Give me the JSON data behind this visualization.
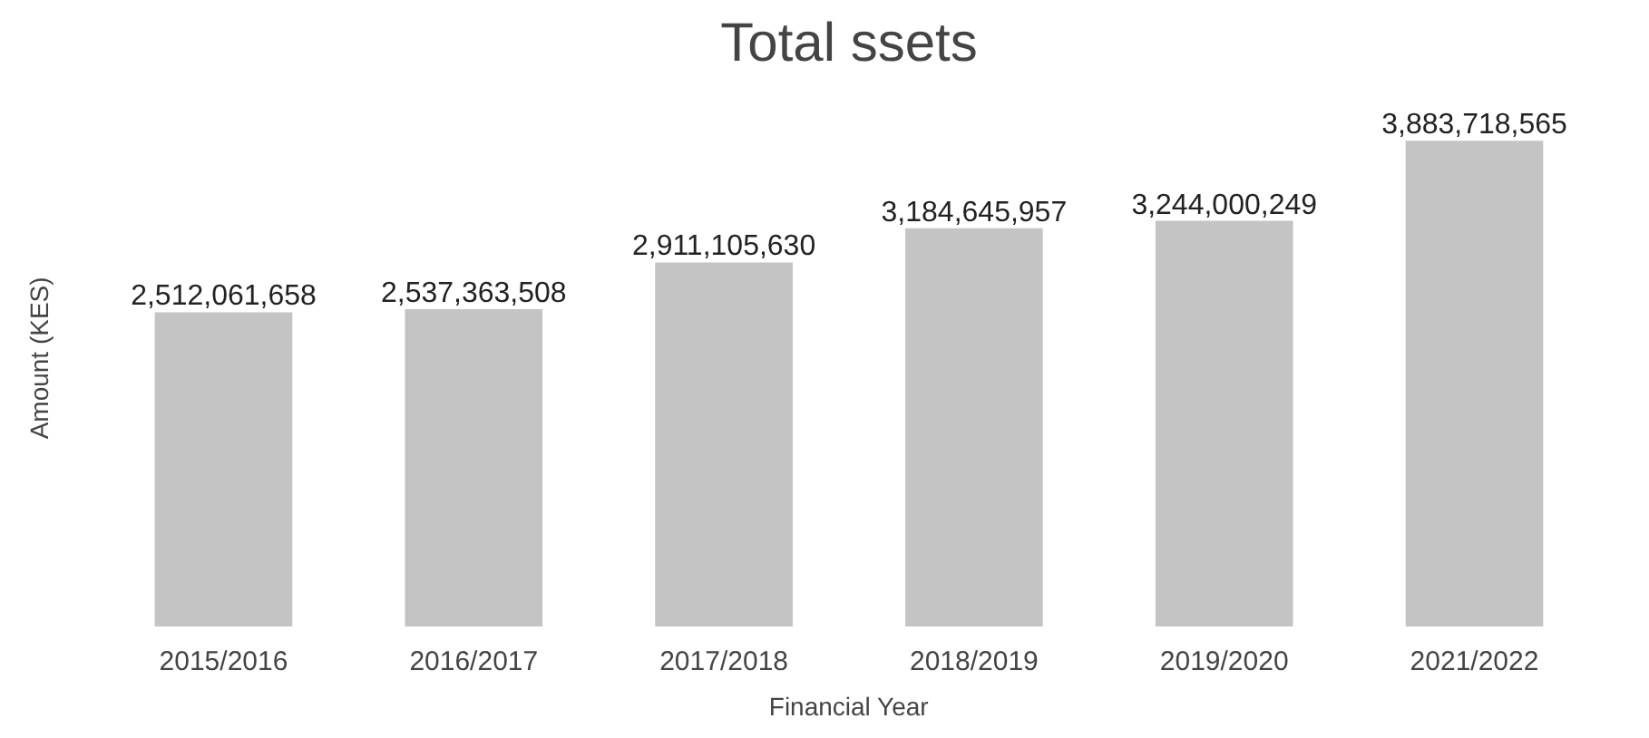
{
  "chart_data": {
    "type": "bar",
    "title": "Total ssets",
    "xlabel": "Financial Year",
    "ylabel": "Amount  (KES)",
    "categories": [
      "2015/2016",
      "2016/2017",
      "2017/2018",
      "2018/2019",
      "2019/2020",
      "2021/2022"
    ],
    "values": [
      2512061658,
      2537363508,
      2911105630,
      3184645957,
      3244000249,
      3883718565
    ],
    "value_labels": [
      "2,512,061,658",
      "2,537,363,508",
      "2,911,105,630",
      "3,184,645,957",
      "3,244,000,249",
      "3,883,718,565"
    ],
    "color": "#c4c4c4"
  }
}
